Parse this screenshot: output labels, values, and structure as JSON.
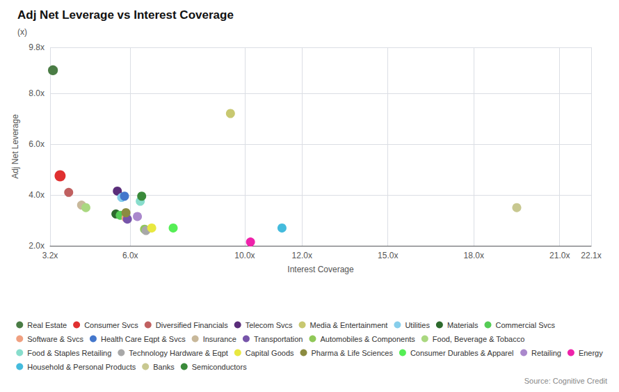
{
  "chart_data": {
    "type": "scatter",
    "title": "Adj Net Leverage vs Interest Coverage",
    "subtitle": "(x)",
    "xlabel": "Interest Coverage",
    "ylabel": "Adj Net Leverage",
    "annotations": [
      "Source: Cognitive Credit"
    ],
    "series": [
      {
        "name": "Real Estate",
        "color": "#4a7c45",
        "x": [
          3.3
        ],
        "values": [
          8.9
        ],
        "size": [
          120
        ]
      },
      {
        "name": "Consumer Svcs",
        "color": "#e03030",
        "x": [
          3.55
        ],
        "values": [
          4.75
        ],
        "size": [
          150
        ]
      },
      {
        "name": "Diversified Financials",
        "color": "#c06060",
        "x": [
          3.85
        ],
        "values": [
          4.1
        ],
        "size": [
          100
        ]
      },
      {
        "name": "Telecom Svcs",
        "color": "#5a2d7a",
        "x": [
          5.55
        ],
        "values": [
          4.15
        ],
        "size": [
          100
        ]
      },
      {
        "name": "Media & Entertainment",
        "color": "#c8c870",
        "x": [
          9.5
        ],
        "values": [
          7.2
        ],
        "size": [
          100
        ]
      },
      {
        "name": "Utilities",
        "color": "#87ceeb",
        "x": [
          5.7
        ],
        "values": [
          3.9
        ],
        "size": [
          100
        ]
      },
      {
        "name": "Materials",
        "color": "#2d6a2d",
        "x": [
          5.5
        ],
        "values": [
          3.25
        ],
        "size": [
          100
        ]
      },
      {
        "name": "Commercial Svcs",
        "color": "#55cc55",
        "x": [
          5.65
        ],
        "values": [
          3.2
        ],
        "size": [
          100
        ]
      },
      {
        "name": "Software & Svcs",
        "color": "#f0a080",
        "x": [
          5.85
        ],
        "values": [
          3.1
        ],
        "size": [
          100
        ]
      },
      {
        "name": "Health Care Eqpt & Svcs",
        "color": "#4477cc",
        "x": [
          5.8
        ],
        "values": [
          3.95
        ],
        "size": [
          100
        ]
      },
      {
        "name": "Insurance",
        "color": "#c8b89a",
        "x": [
          4.3
        ],
        "values": [
          3.6
        ],
        "size": [
          100
        ]
      },
      {
        "name": "Transportation",
        "color": "#7755aa",
        "x": [
          5.9
        ],
        "values": [
          3.05
        ],
        "size": [
          100
        ]
      },
      {
        "name": "Automobiles & Components",
        "color": "#90c858",
        "x": [
          6.5
        ],
        "values": [
          2.65
        ],
        "size": [
          100
        ]
      },
      {
        "name": "Food, Beverage & Tobacco",
        "color": "#aad880",
        "x": [
          4.45
        ],
        "values": [
          3.5
        ],
        "size": [
          100
        ]
      },
      {
        "name": "Food & Staples Retailing",
        "color": "#88ddcc",
        "x": [
          6.35
        ],
        "values": [
          3.75
        ],
        "size": [
          100
        ]
      },
      {
        "name": "Technology Hardware & Eqpt",
        "color": "#a8a8a8",
        "x": [
          6.55
        ],
        "values": [
          2.6
        ],
        "size": [
          100
        ]
      },
      {
        "name": "Capital Goods",
        "color": "#e8e840",
        "x": [
          6.75
        ],
        "values": [
          2.7
        ],
        "size": [
          100
        ]
      },
      {
        "name": "Pharma & Life Sciences",
        "color": "#8b8b40",
        "x": [
          5.85
        ],
        "values": [
          3.3
        ],
        "size": [
          100
        ]
      },
      {
        "name": "Consumer Durables & Apparel",
        "color": "#55ee55",
        "x": [
          7.5
        ],
        "values": [
          2.7
        ],
        "size": [
          100
        ]
      },
      {
        "name": "Retailing",
        "color": "#aa88cc",
        "x": [
          6.25
        ],
        "values": [
          3.15
        ],
        "size": [
          100
        ]
      },
      {
        "name": "Energy",
        "color": "#ee22aa",
        "x": [
          10.2
        ],
        "values": [
          2.15
        ],
        "size": [
          100
        ]
      },
      {
        "name": "Household & Personal Products",
        "color": "#44bbdd",
        "x": [
          11.3
        ],
        "values": [
          2.7
        ],
        "size": [
          100
        ]
      },
      {
        "name": "Banks",
        "color": "#c8c890",
        "x": [
          19.5
        ],
        "values": [
          3.5
        ],
        "size": [
          100
        ]
      },
      {
        "name": "Semiconductors",
        "color": "#3a8a3a",
        "x": [
          6.4
        ],
        "values": [
          3.95
        ],
        "size": [
          100
        ]
      }
    ],
    "xlim": [
      3.2,
      22.1
    ],
    "xticks": [
      {
        "value": 3.2,
        "label": "3.2x"
      },
      {
        "value": 6.0,
        "label": "6.0x"
      },
      {
        "value": 10.0,
        "label": "10.0x"
      },
      {
        "value": 12.0,
        "label": "12.0x"
      },
      {
        "value": 15.0,
        "label": "15.0x"
      },
      {
        "value": 18.0,
        "label": "18.0x"
      },
      {
        "value": 21.0,
        "label": "21.0x"
      },
      {
        "value": 22.1,
        "label": "22.1x"
      }
    ],
    "ylim": [
      2.0,
      9.8
    ],
    "yticks": [
      {
        "value": 2.0,
        "label": "2.0x"
      },
      {
        "value": 4.0,
        "label": "4.0x"
      },
      {
        "value": 6.0,
        "label": "6.0x"
      },
      {
        "value": 8.0,
        "label": "8.0x"
      },
      {
        "value": 9.8,
        "label": "9.8x"
      }
    ],
    "grid": true,
    "legend": "bottom"
  }
}
